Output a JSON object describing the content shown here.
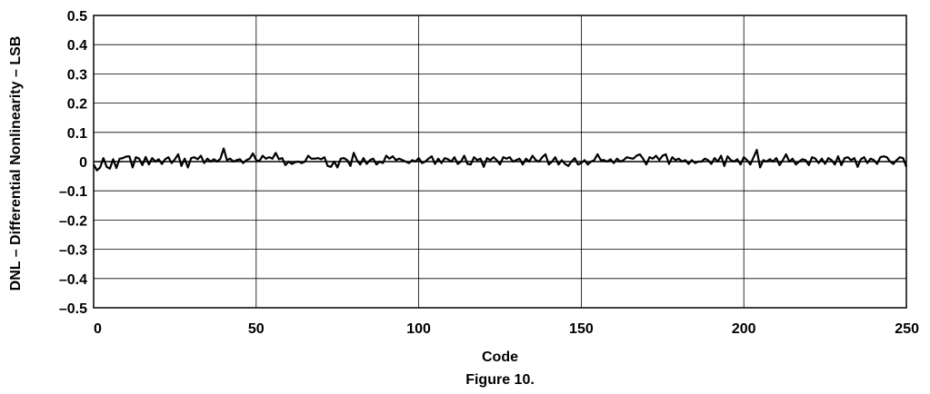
{
  "chart_data": {
    "type": "line",
    "xlabel": "Code",
    "ylabel": "DNL – Differential Nonlinearity – LSB",
    "caption": "Figure 10.",
    "xlim": [
      0,
      250
    ],
    "ylim": [
      -0.5,
      0.5
    ],
    "x_ticks": [
      0,
      50,
      100,
      150,
      200,
      250
    ],
    "y_ticks": [
      0.5,
      0.4,
      0.3,
      0.2,
      0.1,
      0,
      -0.1,
      -0.2,
      -0.3,
      -0.4,
      -0.5
    ],
    "x_tick_labels": [
      "0",
      "50",
      "100",
      "150",
      "200",
      "250"
    ],
    "y_tick_labels": [
      "0.5",
      "0.4",
      "0.3",
      "0.2",
      "0.1",
      "0",
      "–0.1",
      "–0.2",
      "–0.3",
      "–0.4",
      "–0.5"
    ],
    "grid": true,
    "series": [
      {
        "x_start": 0,
        "x_step": 1,
        "values": [
          -0.01,
          -0.03,
          -0.02,
          0.012,
          -0.018,
          -0.024,
          0.008,
          -0.022,
          0.01,
          0.012,
          0.017,
          0.018,
          -0.02,
          0.015,
          0.01,
          -0.012,
          0.016,
          -0.01,
          0.012,
          0.0,
          0.008,
          -0.008,
          0.008,
          0.015,
          -0.005,
          0.008,
          0.025,
          -0.015,
          0.01,
          -0.02,
          0.012,
          0.015,
          0.008,
          0.02,
          -0.005,
          0.01,
          0.0,
          0.008,
          0.0,
          0.01,
          0.045,
          0.005,
          0.01,
          0.0,
          0.005,
          0.008,
          -0.005,
          0.005,
          0.01,
          0.028,
          0.005,
          0.002,
          0.02,
          0.01,
          0.015,
          0.01,
          0.03,
          0.008,
          0.012,
          -0.012,
          0.0,
          -0.008,
          -0.002,
          0.0,
          -0.005,
          0.0,
          0.02,
          0.01,
          0.01,
          0.012,
          0.008,
          0.015,
          -0.015,
          -0.018,
          0.0,
          -0.02,
          0.01,
          0.012,
          0.005,
          -0.015,
          0.03,
          0.005,
          -0.01,
          0.012,
          -0.008,
          0.005,
          0.01,
          -0.01,
          0.0,
          -0.005,
          0.02,
          0.01,
          0.018,
          0.005,
          0.01,
          0.005,
          0.0,
          -0.005,
          0.005,
          0.0,
          0.012,
          -0.005,
          0.0,
          0.01,
          0.018,
          -0.008,
          0.01,
          -0.005,
          0.012,
          0.008,
          0.0,
          0.015,
          -0.008,
          0.0,
          0.02,
          -0.008,
          -0.01,
          0.015,
          0.005,
          0.01,
          -0.018,
          0.012,
          0.005,
          0.015,
          0.005,
          -0.01,
          0.015,
          0.01,
          0.015,
          0.0,
          0.005,
          0.01,
          -0.01,
          0.01,
          0.0,
          0.02,
          0.005,
          0.0,
          0.015,
          0.025,
          -0.01,
          0.0,
          0.015,
          -0.01,
          0.005,
          -0.008,
          -0.015,
          0.0,
          0.012,
          -0.01,
          -0.005,
          0.005,
          -0.01,
          0.0,
          0.005,
          0.025,
          0.005,
          0.005,
          0.0,
          0.008,
          -0.005,
          0.01,
          0.0,
          0.005,
          0.015,
          0.012,
          0.01,
          0.02,
          0.025,
          0.01,
          -0.01,
          0.015,
          0.01,
          0.02,
          0.005,
          0.02,
          0.025,
          -0.008,
          0.015,
          0.005,
          0.01,
          0.0,
          0.005,
          -0.008,
          0.005,
          -0.005,
          0.0,
          0.0,
          0.01,
          0.005,
          -0.008,
          0.012,
          0.0,
          0.02,
          -0.015,
          0.018,
          0.005,
          0.0,
          0.008,
          -0.01,
          0.015,
          0.005,
          -0.01,
          0.015,
          0.04,
          -0.02,
          0.005,
          0.0,
          0.008,
          0.0,
          0.012,
          -0.012,
          0.005,
          0.025,
          0.0,
          0.01,
          -0.01,
          0.0,
          0.008,
          0.005,
          -0.012,
          0.015,
          0.01,
          -0.005,
          0.01,
          -0.008,
          0.012,
          0.005,
          -0.01,
          0.018,
          -0.012,
          0.012,
          0.015,
          0.005,
          0.012,
          -0.018,
          0.008,
          0.015,
          -0.005,
          0.01,
          0.005,
          -0.008,
          0.015,
          0.018,
          0.015,
          0.0,
          -0.008,
          0.005,
          0.015,
          0.012,
          -0.018
        ]
      }
    ]
  }
}
